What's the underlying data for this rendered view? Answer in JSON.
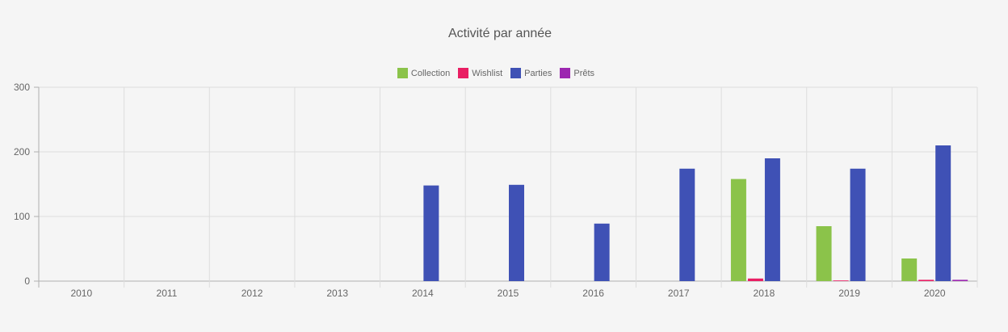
{
  "chart_data": {
    "type": "bar",
    "title": "Activité par année",
    "categories": [
      "2010",
      "2011",
      "2012",
      "2013",
      "2014",
      "2015",
      "2016",
      "2017",
      "2018",
      "2019",
      "2020"
    ],
    "series": [
      {
        "name": "Collection",
        "color": "#8bc34a",
        "values": [
          0,
          0,
          0,
          0,
          0,
          0,
          0,
          0,
          158,
          85,
          35
        ]
      },
      {
        "name": "Wishlist",
        "color": "#e91e63",
        "values": [
          0,
          0,
          0,
          0,
          0,
          0,
          0,
          0,
          4,
          1,
          2
        ]
      },
      {
        "name": "Parties",
        "color": "#3f51b5",
        "values": [
          0,
          0,
          0,
          0,
          148,
          149,
          89,
          174,
          190,
          174,
          210
        ]
      },
      {
        "name": "Prêts",
        "color": "#9c27b0",
        "values": [
          0,
          0,
          0,
          0,
          0,
          0,
          0,
          0,
          0,
          0,
          2
        ]
      }
    ],
    "y_ticks": [
      "0",
      "100",
      "200",
      "300"
    ],
    "ylim": [
      0,
      300
    ],
    "legend_position": "top",
    "grid": true
  }
}
